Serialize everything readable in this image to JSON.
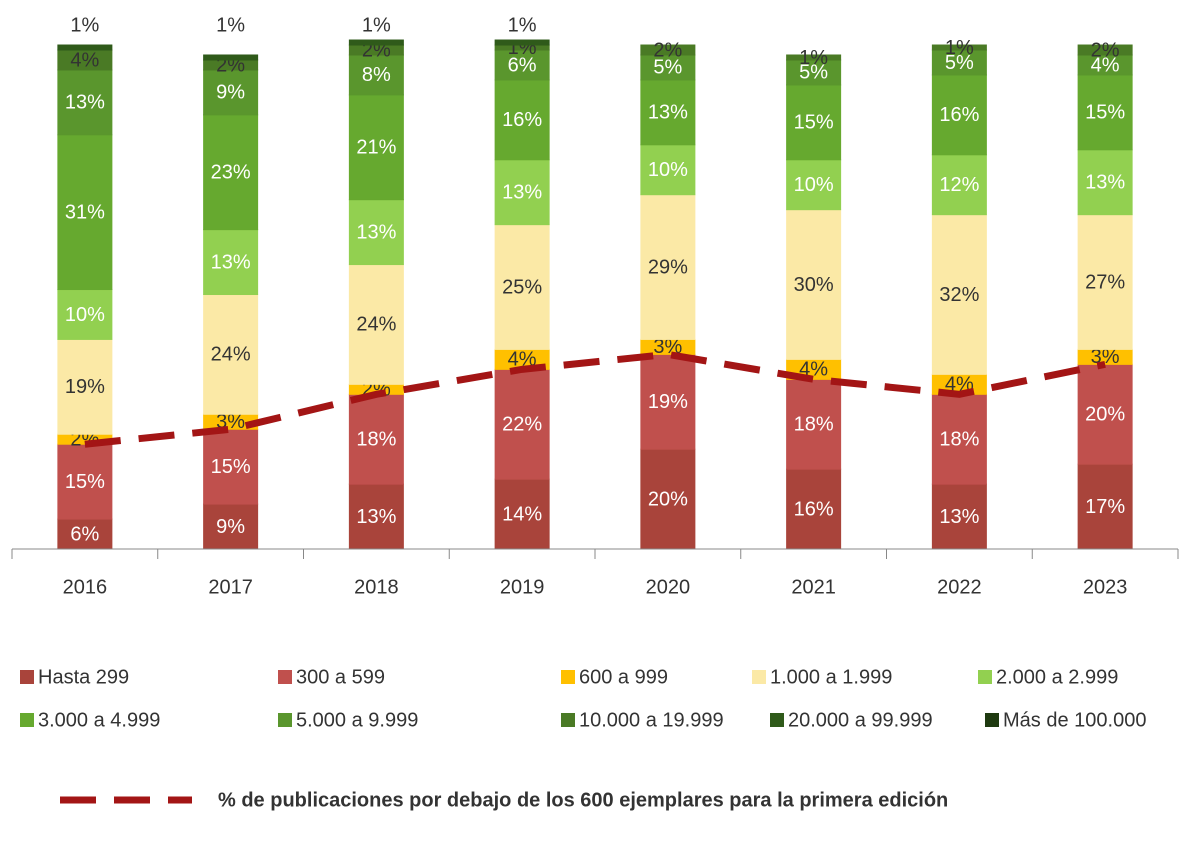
{
  "chart_data": {
    "type": "bar",
    "stacked": true,
    "categories": [
      "2016",
      "2017",
      "2018",
      "2019",
      "2020",
      "2021",
      "2022",
      "2023"
    ],
    "ylim": [
      0,
      100
    ],
    "series": [
      {
        "name": "Hasta 299",
        "color": "#a9443b",
        "values": [
          6,
          9,
          13,
          14,
          20,
          16,
          13,
          17
        ]
      },
      {
        "name": "300 a 599",
        "color": "#c0504d",
        "values": [
          15,
          15,
          18,
          22,
          19,
          18,
          18,
          20
        ]
      },
      {
        "name": "600 a 999",
        "color": "#ffc000",
        "values": [
          2,
          3,
          2,
          4,
          3,
          4,
          4,
          3
        ]
      },
      {
        "name": "1.000 a 1.999",
        "color": "#fbe9a6",
        "values": [
          19,
          24,
          24,
          25,
          29,
          30,
          32,
          27
        ]
      },
      {
        "name": "2.000 a 2.999",
        "color": "#92d050",
        "values": [
          10,
          13,
          13,
          13,
          10,
          10,
          12,
          13
        ]
      },
      {
        "name": "3.000 a 4.999",
        "color": "#66a92f",
        "values": [
          31,
          23,
          21,
          16,
          13,
          15,
          16,
          15
        ]
      },
      {
        "name": "5.000 a 9.999",
        "color": "#5a962d",
        "values": [
          13,
          9,
          8,
          6,
          5,
          5,
          5,
          4
        ]
      },
      {
        "name": "10.000 a 19.999",
        "color": "#4a7a25",
        "values": [
          4,
          2,
          2,
          1,
          2,
          1,
          1,
          2
        ]
      },
      {
        "name": "20.000 a 99.999",
        "color": "#2f5a1a",
        "values": [
          1,
          1,
          1,
          1,
          null,
          null,
          null,
          null
        ]
      },
      {
        "name": "Más de 100.000",
        "color": "#1e3a10",
        "values": [
          null,
          null,
          null,
          null,
          null,
          null,
          null,
          null
        ]
      }
    ],
    "value_labels": [
      [
        "6%",
        "9%",
        "13%",
        "14%",
        "20%",
        "16%",
        "13%",
        "17%"
      ],
      [
        "15%",
        "15%",
        "18%",
        "22%",
        "19%",
        "18%",
        "18%",
        "20%"
      ],
      [
        "2%",
        "3%",
        "2%",
        "4%",
        "3%",
        "4%",
        "4%",
        "3%"
      ],
      [
        "19%",
        "24%",
        "24%",
        "25%",
        "29%",
        "30%",
        "32%",
        "27%"
      ],
      [
        "10%",
        "13%",
        "13%",
        "13%",
        "10%",
        "10%",
        "12%",
        "13%"
      ],
      [
        "31%",
        "23%",
        "21%",
        "16%",
        "13%",
        "15%",
        "16%",
        "15%"
      ],
      [
        "13%",
        "9%",
        "8%",
        "6%",
        "5%",
        "5%",
        "5%",
        "4%"
      ],
      [
        "4%",
        "2%",
        "2%",
        "1%",
        "2%",
        "1%",
        "1%",
        "2%"
      ],
      [
        "1%",
        "1%",
        "1%",
        "1%",
        null,
        null,
        null,
        null
      ],
      [
        null,
        null,
        null,
        null,
        null,
        null,
        null,
        null
      ]
    ],
    "line": {
      "name": "% de publicaciones por debajo de los 600 ejemplares para la primera edición",
      "color": "#a31515",
      "values": [
        21,
        24,
        31,
        36,
        39,
        34,
        31,
        37
      ]
    }
  }
}
